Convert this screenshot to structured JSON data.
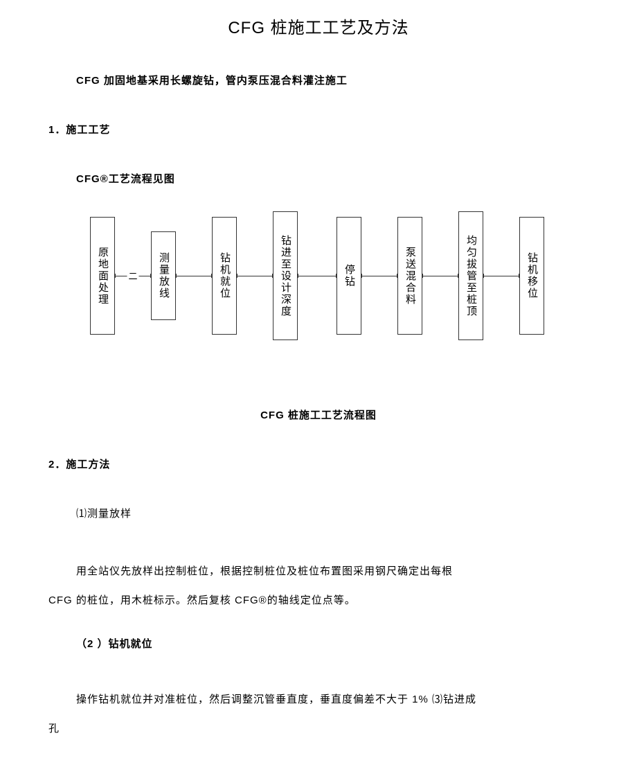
{
  "title": "CFG 桩施工工艺及方法",
  "intro": "CFG 加固地基采用长螺旋钻，管内泵压混合料灌注施工",
  "section1_heading": "1．施工工艺",
  "section1_sub": "CFG®工艺流程见图",
  "flowchart": {
    "boxes": [
      {
        "label": "原地面处理",
        "w": 36,
        "h": 170
      },
      {
        "label": "测量放线",
        "w": 36,
        "h": 128
      },
      {
        "label": "钻机就位",
        "w": 36,
        "h": 170
      },
      {
        "label": "钻进至设计深度",
        "w": 36,
        "h": 186
      },
      {
        "label": "停钻",
        "w": 36,
        "h": 170
      },
      {
        "label": "泵送混合料",
        "w": 36,
        "h": 170
      },
      {
        "label": "均匀拔管至桩顶",
        "w": 36,
        "h": 186
      },
      {
        "label": "钻机移位",
        "w": 36,
        "h": 170
      }
    ],
    "connectors": [
      {
        "w": 52,
        "label": "二"
      },
      {
        "w": 52,
        "label": ""
      },
      {
        "w": 52,
        "label": ""
      },
      {
        "w": 56,
        "label": ""
      },
      {
        "w": 52,
        "label": ""
      },
      {
        "w": 52,
        "label": ""
      },
      {
        "w": 52,
        "label": ""
      }
    ],
    "box_border_color": "#333333",
    "box_bg_color": "#ffffff",
    "box_fontsize": 15
  },
  "caption": "CFG 桩施工工艺流程图",
  "section2_heading": "2．施工方法",
  "item1_title": "⑴测量放样",
  "item1_body_a": "用全站仪先放样出控制桩位，根据控制桩位及桩位布置图采用钢尺确定出每根",
  "item1_body_b": "CFG 的桩位，用木桩标示。然后复核 CFG®的轴线定位点等。",
  "item2_title": "（2 ）钻机就位",
  "item2_body_a": "操作钻机就位并对准桩位，然后调整沉管垂直度，垂直度偏差不大于 1% ⑶钻进成",
  "item2_body_b": "孔"
}
